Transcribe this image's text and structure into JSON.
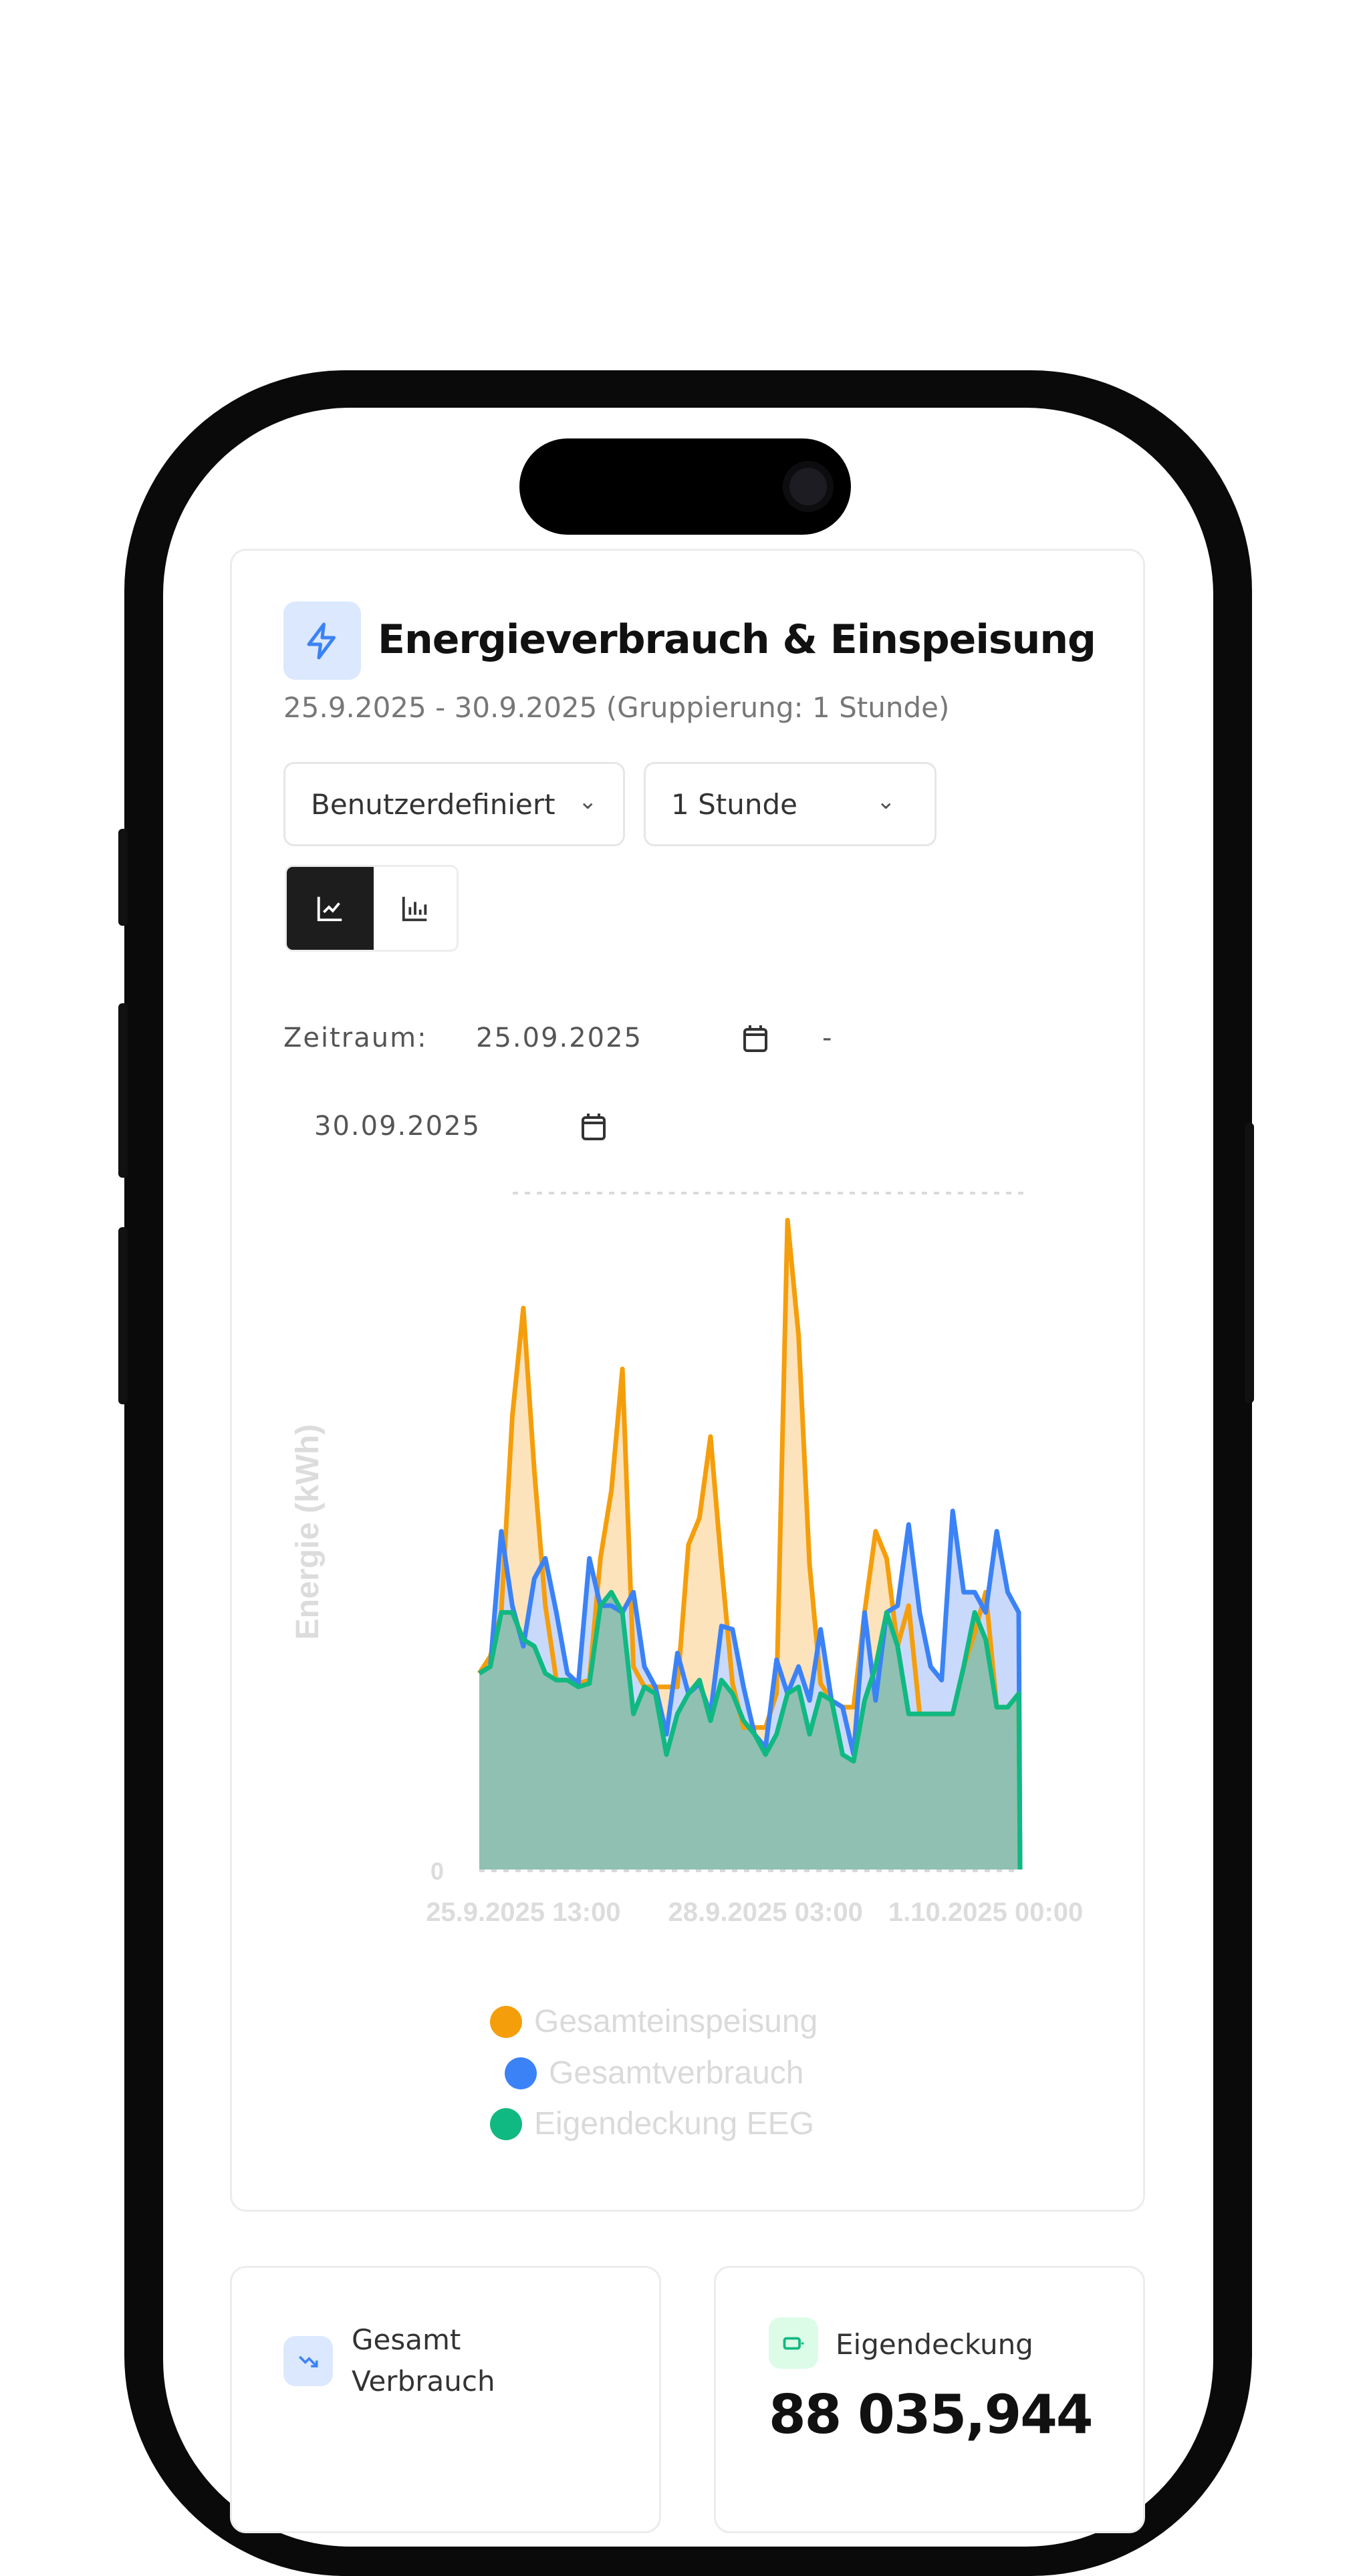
{
  "card": {
    "title": "Energieverbrauch & Einspeisung",
    "icon": "lightning-icon",
    "subtitle": "25.9.2025 - 30.9.2025 (Gruppierung: 1 Stunde)",
    "range_select": "Benutzerdefiniert",
    "group_select": "1 Stunde",
    "chart_type_active": "line",
    "zeitraum_label": "Zeitraum:",
    "date_from": "25.09.2025",
    "date_separator": "-",
    "date_to": "30.09.2025"
  },
  "colors": {
    "orange": "#f59e0b",
    "blue": "#3b82f6",
    "green": "#10b981",
    "accent_bg": "#dbe8fe",
    "green_bg": "#dcfce7"
  },
  "chart_data": {
    "type": "area",
    "ylabel": "Energie (kWh)",
    "y_ticks": [
      "0"
    ],
    "ylim": [
      0,
      100
    ],
    "grid": "top dashed line",
    "x_ticks": [
      {
        "index": 4,
        "label": "25.9.2025 13:00"
      },
      {
        "index": 26,
        "label": "28.9.2025 03:00"
      },
      {
        "index": 46,
        "label": "1.10.2025 00:00"
      }
    ],
    "series": [
      {
        "name": "Gesamteinspeisung",
        "color": "#f59e0b",
        "values": [
          29,
          31.5,
          38,
          67,
          83,
          59,
          39,
          28,
          28,
          27.5,
          28,
          46,
          56,
          74,
          30,
          27,
          27,
          27,
          27,
          48,
          52,
          64,
          45,
          27.5,
          21,
          21,
          21,
          26,
          96,
          79,
          45,
          27.5,
          25,
          24,
          24,
          38,
          50,
          46,
          33,
          39,
          23,
          23,
          23,
          23,
          30,
          35,
          41,
          24,
          24,
          26
        ]
      },
      {
        "name": "Gesamtverbrauch",
        "color": "#3b82f6",
        "values": [
          29,
          30,
          50,
          39,
          33,
          43,
          46,
          38,
          29,
          27.5,
          46,
          39,
          39,
          38,
          41,
          30,
          27,
          20,
          32,
          26,
          27.5,
          23,
          36,
          35.5,
          27,
          20,
          18,
          31,
          26,
          30,
          25,
          35.5,
          25,
          24,
          17,
          38,
          25,
          38,
          39,
          51,
          38,
          30,
          28,
          53,
          41,
          41,
          38,
          50,
          41,
          38
        ]
      },
      {
        "name": "Eigendeckung EEG",
        "color": "#10b981",
        "values": [
          29,
          30,
          38,
          38,
          34,
          33,
          29,
          28,
          28,
          27,
          27.5,
          39,
          41,
          38,
          23,
          27,
          26,
          17,
          23,
          26,
          28,
          22,
          28,
          26,
          22,
          20,
          17,
          20,
          26,
          27,
          20,
          26,
          25,
          17,
          16,
          25,
          30,
          38,
          33,
          23,
          23,
          23,
          23,
          23,
          30,
          38,
          34,
          24,
          24,
          26
        ]
      }
    ]
  },
  "stats": [
    {
      "label": "Gesamt Verbrauch",
      "icon": "trending-down-icon"
    },
    {
      "label": "Eigendeckung",
      "icon": "battery-icon",
      "value": "88 035,944"
    }
  ]
}
